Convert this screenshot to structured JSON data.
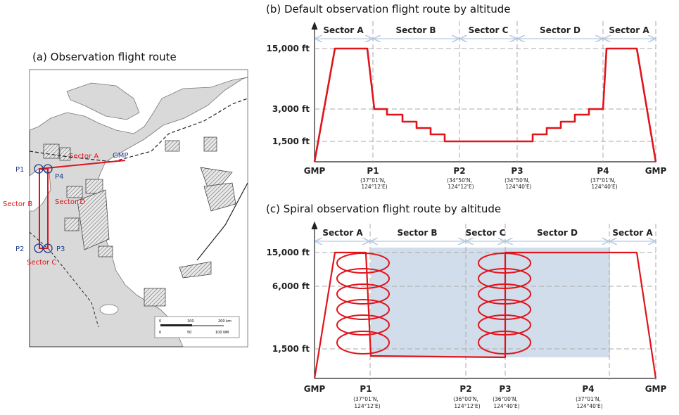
{
  "panel_a": {
    "title": "(a) Observation flight route",
    "points": {
      "gmp": "GMP",
      "p1": "P1",
      "p2": "P2",
      "p3": "P3",
      "p4": "P4"
    },
    "sectors": {
      "a": "Sector A",
      "b": "Sector B",
      "c": "Sector C",
      "d": "Sector D"
    },
    "scale_bar": {
      "ticks": [
        "0",
        "100",
        "200 km"
      ],
      "ticks2": [
        "0",
        "50",
        "100 NM"
      ]
    }
  },
  "panel_b": {
    "title": "(b) Default observation flight route by altitude",
    "sectors": [
      "Sector A",
      "Sector B",
      "Sector C",
      "Sector D",
      "Sector A"
    ],
    "y_ticks": [
      "15,000 ft",
      "3,000 ft",
      "1,500 ft"
    ],
    "x_points": [
      {
        "label": "GMP",
        "coord1": "",
        "coord2": ""
      },
      {
        "label": "P1",
        "coord1": "(37°01'N,",
        "coord2": "124°12'E)"
      },
      {
        "label": "P2",
        "coord1": "(34°50'N,",
        "coord2": "124°12'E)"
      },
      {
        "label": "P3",
        "coord1": "(34°50'N,",
        "coord2": "124°40'E)"
      },
      {
        "label": "P4",
        "coord1": "(37°01'N,",
        "coord2": "124°40'E)"
      },
      {
        "label": "GMP",
        "coord1": "",
        "coord2": ""
      }
    ]
  },
  "panel_c": {
    "title": "(c) Spiral observation flight route by altitude",
    "sectors": [
      "Sector A",
      "Sector B",
      "Sector C",
      "Sector D",
      "Sector A"
    ],
    "y_ticks": [
      "15,000 ft",
      "6,000 ft",
      "1,500 ft"
    ],
    "x_points": [
      {
        "label": "GMP",
        "coord1": "",
        "coord2": ""
      },
      {
        "label": "P1",
        "coord1": "(37°01'N,",
        "coord2": "124°12'E)"
      },
      {
        "label": "P2",
        "coord1": "(36°00'N,",
        "coord2": "124°12'E)"
      },
      {
        "label": "P3",
        "coord1": "(36°00'N,",
        "coord2": "124°40'E)"
      },
      {
        "label": "P4",
        "coord1": "(37°01'N,",
        "coord2": "124°40'E)"
      },
      {
        "label": "GMP",
        "coord1": "",
        "coord2": ""
      }
    ]
  },
  "colors": {
    "route": "#e0141b",
    "sector_arrow": "#b8cde4",
    "shade": "#c9d7e8",
    "grid": "#aaaaaa",
    "map_land": "#ffffff",
    "map_sea": "#d9d9d9",
    "point_marker": "#1b3a8c"
  }
}
